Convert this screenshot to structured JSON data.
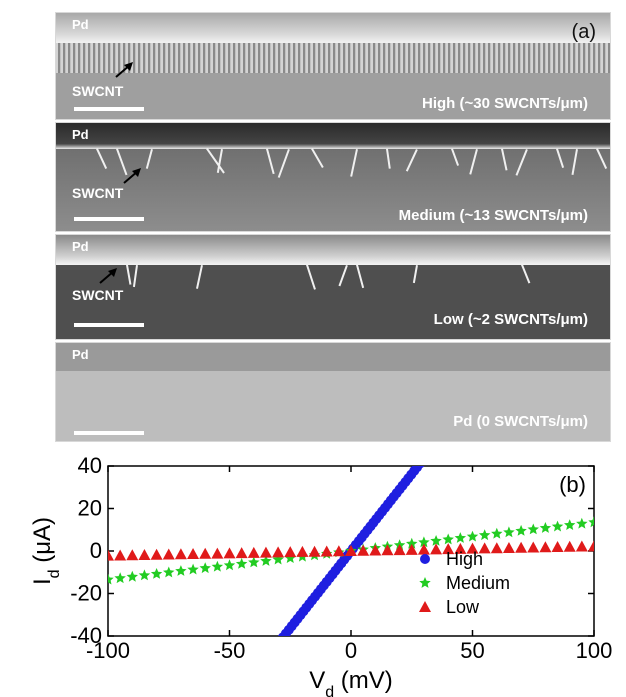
{
  "figure": {
    "panel_a_label": "(a)",
    "panel_b_label": "(b)",
    "panels": [
      {
        "electrode": "Pd",
        "tube_label": "SWCNT",
        "density": "High (~30 SWCNTs/μm)"
      },
      {
        "electrode": "Pd",
        "tube_label": "SWCNT",
        "density": "Medium (~13 SWCNTs/μm)"
      },
      {
        "electrode": "Pd",
        "tube_label": "SWCNT",
        "density": "Low (~2 SWCNTs/μm)"
      },
      {
        "electrode": "Pd",
        "tube_label": "",
        "density": "Pd (0 SWCNTs/μm)"
      }
    ]
  },
  "chart_data": {
    "type": "scatter",
    "xlabel": "V_d (mV)",
    "ylabel": "I_d (μA)",
    "xlim": [
      -100,
      100
    ],
    "ylim": [
      -40,
      40
    ],
    "xticks": [
      -100,
      -50,
      0,
      50,
      100
    ],
    "yticks": [
      -40,
      -20,
      0,
      20,
      40
    ],
    "legend_position": "lower-right",
    "series": [
      {
        "name": "High",
        "marker": "circle",
        "color": "#1f1fe0",
        "slope": 1.45
      },
      {
        "name": "Medium",
        "marker": "star",
        "color": "#22cc22",
        "slope": 0.135
      },
      {
        "name": "Low",
        "marker": "triangle",
        "color": "#e01a1a",
        "slope": 0.022
      }
    ],
    "x_step": 5
  }
}
